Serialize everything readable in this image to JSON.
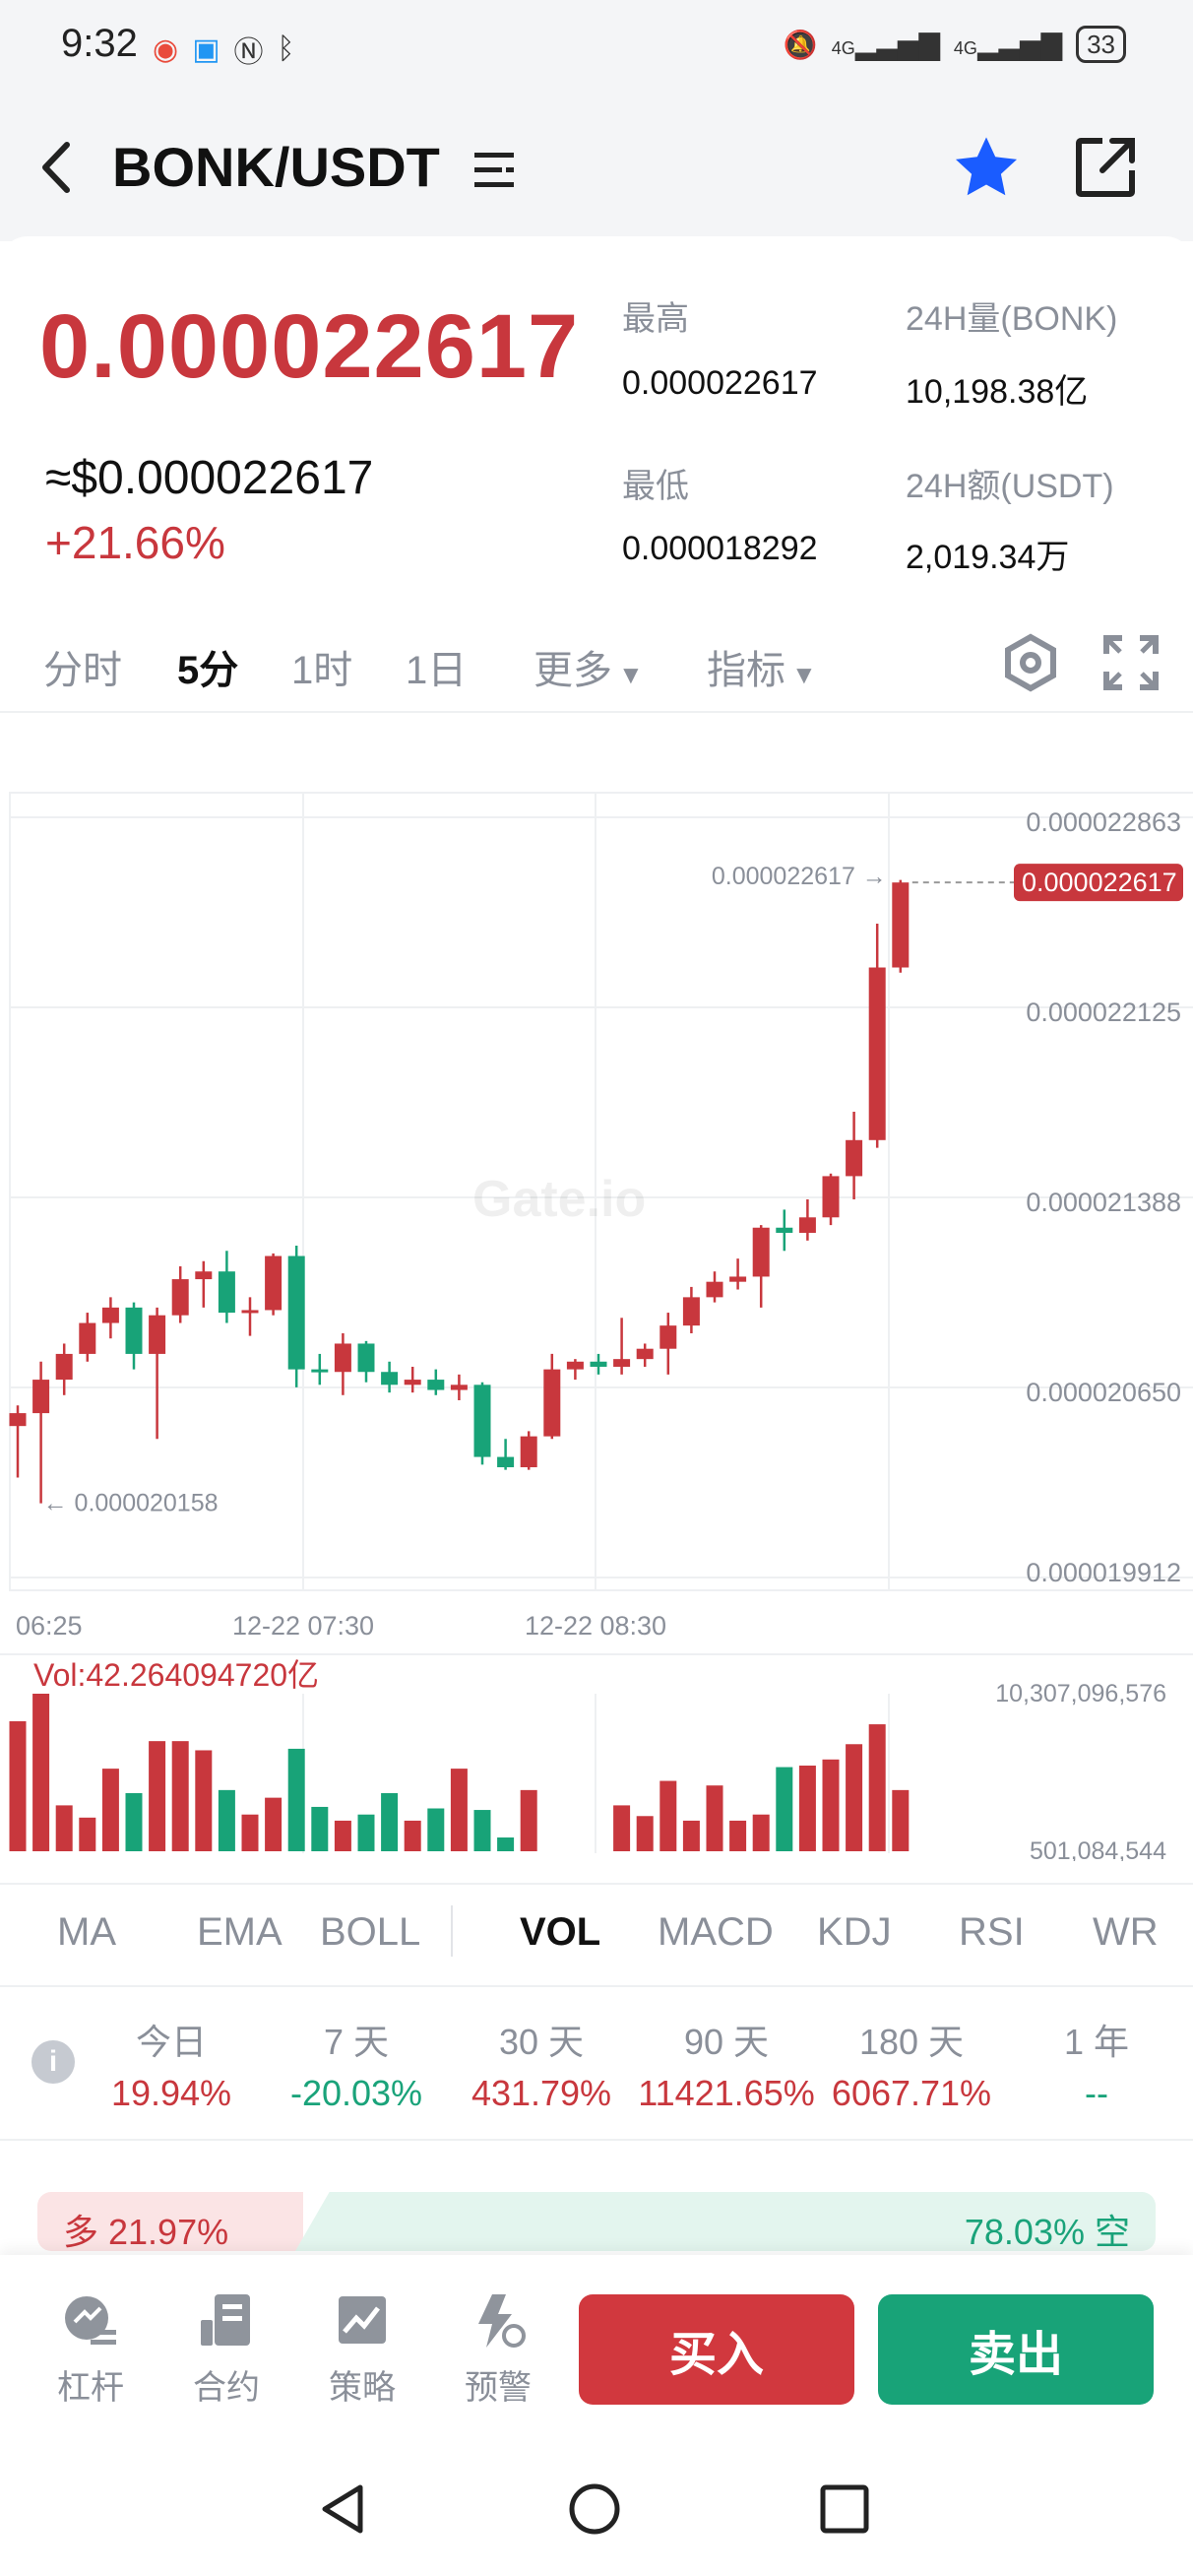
{
  "status": {
    "time": "9:32",
    "battery": "33",
    "net1": "4G",
    "net2": "4G"
  },
  "header": {
    "title": "BONK/USDT"
  },
  "ticker": {
    "price": "0.000022617",
    "usd_price": "≈$0.000022617",
    "change": "+21.66%",
    "high_label": "最高",
    "high_value": "0.000022617",
    "low_label": "最低",
    "low_value": "0.000018292",
    "vol_label": "24H量(BONK)",
    "vol_value": "10,198.38亿",
    "amt_label": "24H额(USDT)",
    "amt_value": "2,019.34万"
  },
  "period_tabs": [
    "分时",
    "5分",
    "1时",
    "1日",
    "更多",
    "指标"
  ],
  "active_period": "5分",
  "colors": {
    "up": "#c8373d",
    "down": "#18a378",
    "accent": "#1a5cff"
  },
  "chart_data": {
    "type": "candlestick",
    "y_ticks": [
      "0.000022863",
      "0.000022125",
      "0.000021388",
      "0.000020650",
      "0.000019912"
    ],
    "ylim": [
      1.9912e-05,
      2.2863e-05
    ],
    "x_ticks": [
      "06:25",
      "12-22 07:30",
      "12-22 08:30"
    ],
    "current_price_tag": "0.000022617",
    "high_marker": "0.000022617 →",
    "low_marker": "← 0.000020158",
    "watermark": "Gate.io",
    "candles": [
      {
        "o": 2.05e-05,
        "h": 2.058e-05,
        "l": 2.03e-05,
        "c": 2.055e-05
      },
      {
        "o": 2.055e-05,
        "h": 2.075e-05,
        "l": 2.02e-05,
        "c": 2.068e-05
      },
      {
        "o": 2.068e-05,
        "h": 2.082e-05,
        "l": 2.062e-05,
        "c": 2.078e-05
      },
      {
        "o": 2.078e-05,
        "h": 2.094e-05,
        "l": 2.075e-05,
        "c": 2.09e-05
      },
      {
        "o": 2.09e-05,
        "h": 2.1e-05,
        "l": 2.084e-05,
        "c": 2.096e-05
      },
      {
        "o": 2.096e-05,
        "h": 2.098e-05,
        "l": 2.072e-05,
        "c": 2.078e-05
      },
      {
        "o": 2.078e-05,
        "h": 2.096e-05,
        "l": 2.045e-05,
        "c": 2.093e-05
      },
      {
        "o": 2.093e-05,
        "h": 2.112e-05,
        "l": 2.09e-05,
        "c": 2.107e-05
      },
      {
        "o": 2.107e-05,
        "h": 2.114e-05,
        "l": 2.096e-05,
        "c": 2.11e-05
      },
      {
        "o": 2.11e-05,
        "h": 2.118e-05,
        "l": 2.09e-05,
        "c": 2.094e-05
      },
      {
        "o": 2.094e-05,
        "h": 2.1e-05,
        "l": 2.085e-05,
        "c": 2.095e-05
      },
      {
        "o": 2.095e-05,
        "h": 2.117e-05,
        "l": 2.093e-05,
        "c": 2.116e-05
      },
      {
        "o": 2.116e-05,
        "h": 2.12e-05,
        "l": 2.065e-05,
        "c": 2.072e-05
      },
      {
        "o": 2.072e-05,
        "h": 2.078e-05,
        "l": 2.066e-05,
        "c": 2.071e-05
      },
      {
        "o": 2.071e-05,
        "h": 2.086e-05,
        "l": 2.062e-05,
        "c": 2.082e-05
      },
      {
        "o": 2.082e-05,
        "h": 2.083e-05,
        "l": 2.067e-05,
        "c": 2.071e-05
      },
      {
        "o": 2.071e-05,
        "h": 2.075e-05,
        "l": 2.063e-05,
        "c": 2.066e-05
      },
      {
        "o": 2.066e-05,
        "h": 2.073e-05,
        "l": 2.063e-05,
        "c": 2.068e-05
      },
      {
        "o": 2.068e-05,
        "h": 2.072e-05,
        "l": 2.062e-05,
        "c": 2.064e-05
      },
      {
        "o": 2.064e-05,
        "h": 2.07e-05,
        "l": 2.06e-05,
        "c": 2.066e-05
      },
      {
        "o": 2.066e-05,
        "h": 2.067e-05,
        "l": 2.035e-05,
        "c": 2.038e-05
      },
      {
        "o": 2.038e-05,
        "h": 2.045e-05,
        "l": 2.033e-05,
        "c": 2.034e-05
      },
      {
        "o": 2.034e-05,
        "h": 2.048e-05,
        "l": 2.033e-05,
        "c": 2.046e-05
      },
      {
        "o": 2.046e-05,
        "h": 2.078e-05,
        "l": 2.045e-05,
        "c": 2.072e-05
      },
      {
        "o": 2.072e-05,
        "h": 2.076e-05,
        "l": 2.068e-05,
        "c": 2.075e-05
      },
      {
        "o": 2.075e-05,
        "h": 2.078e-05,
        "l": 2.07e-05,
        "c": 2.073e-05
      },
      {
        "o": 2.073e-05,
        "h": 2.092e-05,
        "l": 2.07e-05,
        "c": 2.076e-05
      },
      {
        "o": 2.076e-05,
        "h": 2.082e-05,
        "l": 2.073e-05,
        "c": 2.08e-05
      },
      {
        "o": 2.08e-05,
        "h": 2.094e-05,
        "l": 2.07e-05,
        "c": 2.089e-05
      },
      {
        "o": 2.089e-05,
        "h": 2.104e-05,
        "l": 2.086e-05,
        "c": 2.1e-05
      },
      {
        "o": 2.1e-05,
        "h": 2.11e-05,
        "l": 2.098e-05,
        "c": 2.106e-05
      },
      {
        "o": 2.106e-05,
        "h": 2.115e-05,
        "l": 2.103e-05,
        "c": 2.108e-05
      },
      {
        "o": 2.108e-05,
        "h": 2.128e-05,
        "l": 2.096e-05,
        "c": 2.127e-05
      },
      {
        "o": 2.127e-05,
        "h": 2.134e-05,
        "l": 2.118e-05,
        "c": 2.125e-05
      },
      {
        "o": 2.125e-05,
        "h": 2.138e-05,
        "l": 2.122e-05,
        "c": 2.131e-05
      },
      {
        "o": 2.131e-05,
        "h": 2.148e-05,
        "l": 2.128e-05,
        "c": 2.147e-05
      },
      {
        "o": 2.147e-05,
        "h": 2.172e-05,
        "l": 2.138e-05,
        "c": 2.161e-05
      },
      {
        "o": 2.161e-05,
        "h": 2.245e-05,
        "l": 2.158e-05,
        "c": 2.228e-05
      },
      {
        "o": 2.228e-05,
        "h": 2.262e-05,
        "l": 2.226e-05,
        "c": 2.261e-05
      }
    ],
    "volume": {
      "label": "Vol:42.264094720亿",
      "max_label": "10,307,096,576",
      "min_label": "501,084,544",
      "bars": [
        8.5,
        10.3,
        3.0,
        2.2,
        5.4,
        3.8,
        7.2,
        7.2,
        6.6,
        4.0,
        2.4,
        3.5,
        6.7,
        2.9,
        2.0,
        2.4,
        3.8,
        2.0,
        2.8,
        5.4,
        2.7,
        0.9,
        4.0,
        0,
        0,
        0,
        3.0,
        2.3,
        4.6,
        2.0,
        4.3,
        2.0,
        2.4,
        5.5,
        5.6,
        6.0,
        7.0,
        8.3,
        4.0
      ]
    }
  },
  "indicator_tabs": [
    "MA",
    "EMA",
    "BOLL",
    "VOL",
    "MACD",
    "KDJ",
    "RSI",
    "WR"
  ],
  "active_indicator": "VOL",
  "performance": [
    {
      "label": "今日",
      "value": "19.94%",
      "trend": "up"
    },
    {
      "label": "7 天",
      "value": "-20.03%",
      "trend": "down"
    },
    {
      "label": "30 天",
      "value": "431.79%",
      "trend": "up"
    },
    {
      "label": "90 天",
      "value": "11421.65%",
      "trend": "up"
    },
    {
      "label": "180 天",
      "value": "6067.71%",
      "trend": "up"
    },
    {
      "label": "1 年",
      "value": "--",
      "trend": "down"
    }
  ],
  "long_short": {
    "long_label": "多 21.97%",
    "short_label": "78.03% 空",
    "long_fraction": 0.2197
  },
  "bottom_nav": [
    {
      "label": "杠杆",
      "icon": "leverage-icon"
    },
    {
      "label": "合约",
      "icon": "contract-icon"
    },
    {
      "label": "策略",
      "icon": "strategy-icon"
    },
    {
      "label": "预警",
      "icon": "alert-icon"
    }
  ],
  "actions": {
    "buy": "买入",
    "sell": "卖出"
  }
}
